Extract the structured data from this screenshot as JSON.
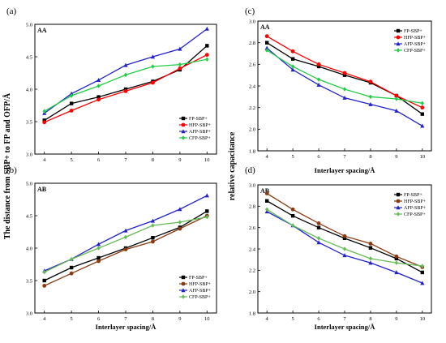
{
  "y_title_left": "The distance from SBP+ to FP and OFP/Å",
  "y_title_right": "relative capacitance",
  "chart_data": [
    {
      "id": "a",
      "panel_label": "(a)",
      "group": "AA",
      "type": "line",
      "xlabel": "",
      "ylabel": "",
      "x": [
        4,
        5,
        6,
        7,
        8,
        9,
        10
      ],
      "xticks": [
        4,
        5,
        6,
        7,
        8,
        9,
        10
      ],
      "ylim": [
        3.0,
        5.0
      ],
      "yticks": [
        "3.0",
        "3.5",
        "4.0",
        "4.5",
        "5.0"
      ],
      "legend_position": "bottom-right",
      "series": [
        {
          "name": "FP-SBP+",
          "color": "#000000",
          "marker": "square",
          "values": [
            3.52,
            3.78,
            3.88,
            4.0,
            4.12,
            4.3,
            4.67
          ]
        },
        {
          "name": "HFP-SBP+",
          "color": "#ff0000",
          "marker": "circle",
          "values": [
            3.49,
            3.67,
            3.84,
            3.97,
            4.1,
            4.32,
            4.53
          ]
        },
        {
          "name": "AFP-SBP+",
          "color": "#2222cc",
          "marker": "triangle",
          "values": [
            3.63,
            3.93,
            4.14,
            4.37,
            4.5,
            4.62,
            4.93
          ]
        },
        {
          "name": "CFP-SBP+",
          "color": "#22cc44",
          "marker": "diamond",
          "values": [
            3.66,
            3.9,
            4.05,
            4.22,
            4.35,
            4.38,
            4.46
          ]
        }
      ]
    },
    {
      "id": "b",
      "panel_label": "(b)",
      "group": "AB",
      "type": "line",
      "xlabel": "Interlayer spacing/Å",
      "ylabel": "",
      "x": [
        4,
        5,
        6,
        7,
        8,
        9,
        10
      ],
      "xticks": [
        4,
        5,
        6,
        7,
        8,
        9,
        10
      ],
      "ylim": [
        3.0,
        5.0
      ],
      "yticks": [
        "3.0",
        "3.5",
        "4.0",
        "4.5",
        "5.0"
      ],
      "legend_position": "bottom-right",
      "series": [
        {
          "name": "FP-SBP+",
          "color": "#000000",
          "marker": "square",
          "values": [
            3.5,
            3.7,
            3.85,
            4.0,
            4.16,
            4.32,
            4.57
          ]
        },
        {
          "name": "HFP-SBP+",
          "color": "#8b3a10",
          "marker": "circle",
          "values": [
            3.42,
            3.61,
            3.8,
            3.98,
            4.1,
            4.3,
            4.5
          ]
        },
        {
          "name": "AFP-SBP+",
          "color": "#2222cc",
          "marker": "triangle",
          "values": [
            3.65,
            3.83,
            4.06,
            4.27,
            4.42,
            4.6,
            4.81
          ]
        },
        {
          "name": "CFP-SBP+",
          "color": "#66bb55",
          "marker": "diamond",
          "values": [
            3.63,
            3.83,
            4.0,
            4.17,
            4.35,
            4.4,
            4.48
          ]
        }
      ]
    },
    {
      "id": "c",
      "panel_label": "(c)",
      "group": "AA",
      "type": "line",
      "xlabel": "Interlayer spacing/Å",
      "ylabel": "",
      "x": [
        4,
        5,
        6,
        7,
        8,
        9,
        10
      ],
      "xticks": [
        4,
        5,
        6,
        7,
        8,
        9,
        10
      ],
      "ylim": [
        1.8,
        3.0
      ],
      "yticks": [
        "1.8",
        "2.0",
        "2.2",
        "2.4",
        "2.6",
        "2.8",
        "3.0"
      ],
      "legend_position": "top-right",
      "series": [
        {
          "name": "FP-SBP+",
          "color": "#000000",
          "marker": "square",
          "values": [
            2.8,
            2.65,
            2.58,
            2.5,
            2.43,
            2.31,
            2.14
          ]
        },
        {
          "name": "HFP-SBP+",
          "color": "#ff0000",
          "marker": "circle",
          "values": [
            2.86,
            2.72,
            2.6,
            2.52,
            2.44,
            2.31,
            2.2
          ]
        },
        {
          "name": "AFP-SBP+",
          "color": "#2222cc",
          "marker": "triangle",
          "values": [
            2.75,
            2.55,
            2.41,
            2.29,
            2.23,
            2.17,
            2.03
          ]
        },
        {
          "name": "CFP-SBP+",
          "color": "#22cc44",
          "marker": "diamond",
          "values": [
            2.73,
            2.58,
            2.46,
            2.37,
            2.3,
            2.28,
            2.24
          ]
        }
      ]
    },
    {
      "id": "d",
      "panel_label": "(d)",
      "group": "AB",
      "type": "line",
      "xlabel": "Interlayer spacing/Å",
      "ylabel": "",
      "x": [
        4,
        5,
        6,
        7,
        8,
        9,
        10
      ],
      "xticks": [
        4,
        5,
        6,
        7,
        8,
        9,
        10
      ],
      "ylim": [
        1.8,
        3.0
      ],
      "yticks": [
        "1.8",
        "2.0",
        "2.2",
        "2.4",
        "2.6",
        "2.8",
        "3.0"
      ],
      "legend_position": "top-right",
      "series": [
        {
          "name": "FP-SBP+",
          "color": "#000000",
          "marker": "square",
          "values": [
            2.85,
            2.71,
            2.6,
            2.5,
            2.41,
            2.31,
            2.18
          ]
        },
        {
          "name": "HFP-SBP+",
          "color": "#8b3a10",
          "marker": "circle",
          "values": [
            2.92,
            2.77,
            2.64,
            2.52,
            2.45,
            2.33,
            2.23
          ]
        },
        {
          "name": "AFP-SBP+",
          "color": "#2222cc",
          "marker": "triangle",
          "values": [
            2.75,
            2.62,
            2.46,
            2.34,
            2.27,
            2.18,
            2.08
          ]
        },
        {
          "name": "CFP-SBP+",
          "color": "#66bb55",
          "marker": "diamond",
          "values": [
            2.77,
            2.62,
            2.5,
            2.4,
            2.31,
            2.27,
            2.24
          ]
        }
      ]
    }
  ]
}
